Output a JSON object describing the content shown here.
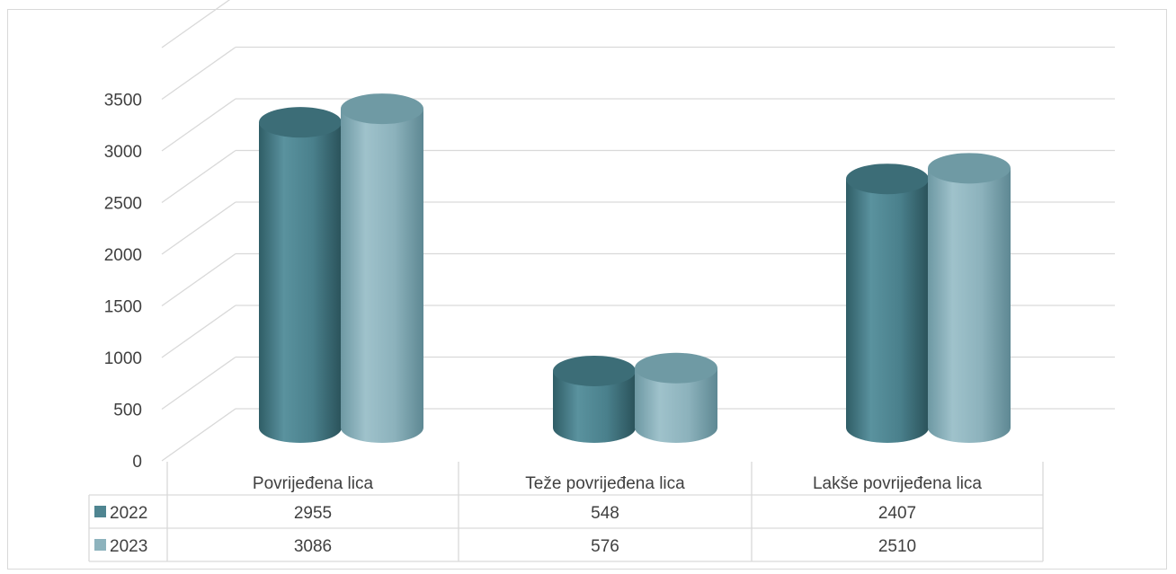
{
  "chart_data": {
    "type": "bar",
    "style": "3d-cylinder",
    "categories": [
      "Povrijeđena lica",
      "Teže povrijeđena lica",
      "Lakše povrijeđena lica"
    ],
    "series": [
      {
        "name": "2022",
        "values": [
          2955,
          548,
          2407
        ],
        "color": "#4f8591"
      },
      {
        "name": "2023",
        "values": [
          3086,
          576,
          2510
        ],
        "color": "#8db3bd"
      }
    ],
    "yticks": [
      "0",
      "500",
      "1000",
      "1500",
      "2000",
      "2500",
      "3000",
      "3500"
    ],
    "ylim": [
      0,
      4000
    ],
    "grid": true,
    "legend": "data-table-below",
    "table_rows": [
      {
        "label": "2022",
        "cells": [
          "2955",
          "548",
          "2407"
        ]
      },
      {
        "label": "2023",
        "cells": [
          "3086",
          "576",
          "2510"
        ]
      }
    ]
  }
}
